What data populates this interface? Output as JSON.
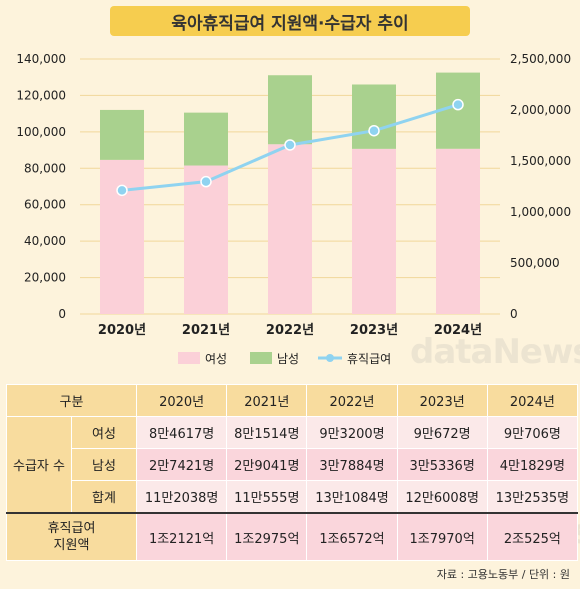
{
  "title": "육아휴직급여 지원액·수급자 추이",
  "watermark": "dataNews",
  "chart_data": {
    "type": "bar",
    "stacked": true,
    "categories": [
      "2020년",
      "2021년",
      "2022년",
      "2023년",
      "2024년"
    ],
    "series": [
      {
        "name": "여성",
        "values": [
          84617,
          81514,
          93200,
          90672,
          90706
        ],
        "color": "#fbd0d8"
      },
      {
        "name": "남성",
        "values": [
          27421,
          29041,
          37884,
          35336,
          41829
        ],
        "color": "#a9d18e"
      }
    ],
    "line_series": {
      "name": "휴직급여",
      "values": [
        1212100,
        1297500,
        1657200,
        1797000,
        2052500
      ],
      "color": "#8fd3f0"
    },
    "y_left": {
      "ticks": [
        "0",
        "20,000",
        "40,000",
        "60,000",
        "80,000",
        "100,000",
        "120,000",
        "140,000"
      ],
      "ylim": [
        0,
        140000
      ]
    },
    "y_right": {
      "ticks": [
        "0",
        "500,000",
        "1,000,000",
        "1,500,000",
        "2,000,000",
        "2,500,000"
      ],
      "ylim": [
        0,
        2500000
      ]
    },
    "legend_position": "bottom"
  },
  "table": {
    "header": [
      "구분",
      "2020년",
      "2021년",
      "2022년",
      "2023년",
      "2024년"
    ],
    "group_label": "수급자 수",
    "rows": [
      {
        "label": "여성",
        "values": [
          "8만4617명",
          "8만1514명",
          "9만3200명",
          "9만672명",
          "9만706명"
        ]
      },
      {
        "label": "남성",
        "values": [
          "2만7421명",
          "2만9041명",
          "3만7884명",
          "3만5336명",
          "4만1829명"
        ]
      },
      {
        "label": "합계",
        "values": [
          "11만2038명",
          "11만555명",
          "13만1084명",
          "12만6008명",
          "13만2535명"
        ]
      }
    ],
    "amount_label_line1": "휴직급여",
    "amount_label_line2": "지원액",
    "amount_values": [
      "1조2121억",
      "1조2975억",
      "1조6572억",
      "1조7970억",
      "2조525억"
    ]
  },
  "source": "자료 : 고용노동부 / 단위 : 원"
}
